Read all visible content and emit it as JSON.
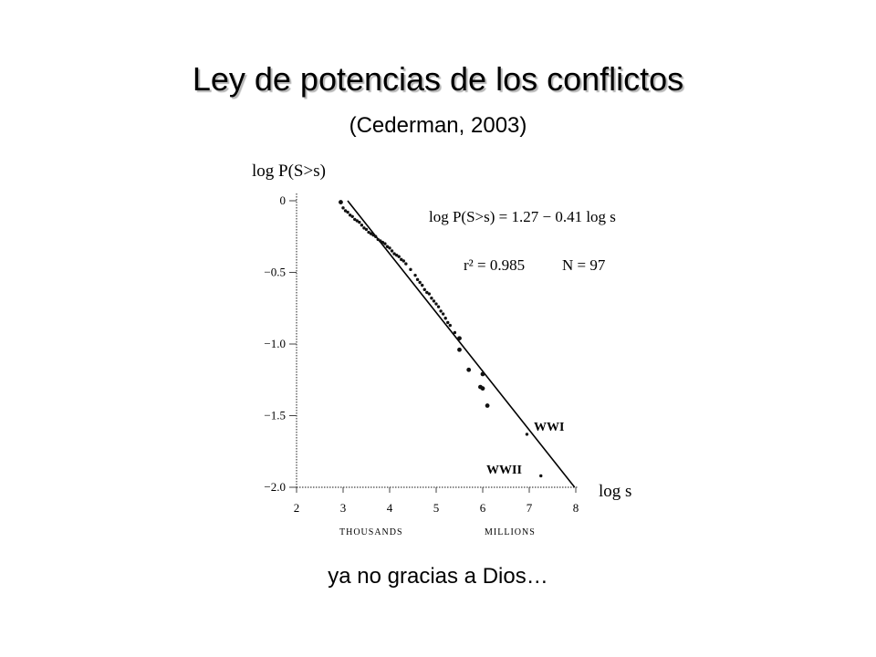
{
  "slide": {
    "title": "Ley de potencias de los conflictos",
    "subtitle": "(Cederman, 2003)",
    "footer": "ya no gracias a Dios…"
  },
  "chart_data": {
    "type": "scatter",
    "ylabel": "log P(S>s)",
    "xlabel": "log s",
    "xlim": [
      2,
      8
    ],
    "ylim": [
      -2.0,
      0
    ],
    "xticks": [
      "2",
      "3",
      "4",
      "5",
      "6",
      "7",
      "8"
    ],
    "yticks": [
      "0",
      "−0.5",
      "−1.0",
      "−1.5",
      "−2.0"
    ],
    "grid": false,
    "x_group_labels": [
      {
        "text": "THOUSANDS",
        "at": 4
      },
      {
        "text": "MILLIONS",
        "at": 7
      }
    ],
    "annotations": {
      "equation": "log P(S>s) = 1.27 − 0.41 log s",
      "r2": "r² = 0.985",
      "n": "N = 97",
      "wwi": "WWI",
      "wwii": "WWII"
    },
    "fit_line": {
      "intercept": 1.27,
      "slope": -0.41
    },
    "series": [
      {
        "x": [
          2.95,
          3.0,
          3.05,
          3.1,
          3.15,
          3.2,
          3.25,
          3.3,
          3.35,
          3.4,
          3.45,
          3.5,
          3.55,
          3.6,
          3.65,
          3.7,
          3.75,
          3.8,
          3.85,
          3.9,
          3.95,
          4.0,
          4.05,
          4.1,
          4.15,
          4.2,
          4.25,
          4.3,
          4.35,
          4.45,
          4.55,
          4.6,
          4.65,
          4.7,
          4.75,
          4.8,
          4.85,
          4.9,
          4.95,
          5.0,
          5.05,
          5.1,
          5.15,
          5.2,
          5.25,
          5.3,
          5.4,
          5.5,
          5.5,
          5.7,
          5.95,
          6.0,
          6.0,
          6.1,
          6.95,
          7.25
        ],
        "y": [
          -0.01,
          -0.05,
          -0.07,
          -0.08,
          -0.1,
          -0.11,
          -0.13,
          -0.14,
          -0.15,
          -0.17,
          -0.19,
          -0.2,
          -0.22,
          -0.23,
          -0.24,
          -0.25,
          -0.27,
          -0.28,
          -0.29,
          -0.3,
          -0.32,
          -0.33,
          -0.35,
          -0.37,
          -0.38,
          -0.39,
          -0.41,
          -0.42,
          -0.44,
          -0.48,
          -0.52,
          -0.55,
          -0.57,
          -0.59,
          -0.62,
          -0.64,
          -0.65,
          -0.68,
          -0.7,
          -0.72,
          -0.74,
          -0.77,
          -0.79,
          -0.82,
          -0.85,
          -0.87,
          -0.92,
          -0.96,
          -1.04,
          -1.18,
          -1.3,
          -1.21,
          -1.31,
          -1.43,
          -1.63,
          -1.92
        ]
      }
    ]
  }
}
